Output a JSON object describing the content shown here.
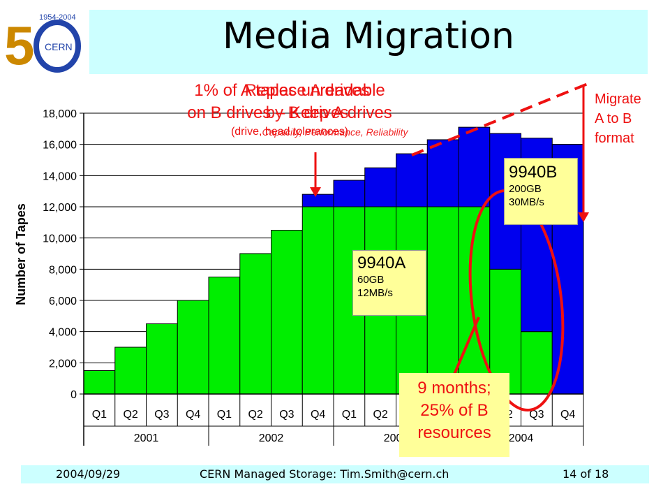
{
  "slide": {
    "title": "Media Migration",
    "logo_text": "CERN",
    "logo_years": "1954-2004"
  },
  "footer": {
    "date": "2004/09/29",
    "center": "CERN Managed Storage: Tim.Smith@cern.ch",
    "page": "14 of 18"
  },
  "annotations": {
    "replace_line1": "1% of A tapes unreadable",
    "replace_line2": "on B drives – Keep A drives",
    "replace_sub": "(drive, head tolerances)",
    "overlay_line1": "Replace A drives",
    "overlay_line2": "by B drives",
    "overlay_sub": "Capacity, Performance, Reliability",
    "migrate": "Migrate\nA to B\nformat",
    "callout": "9 months;\n25% of B\nresources"
  },
  "legend": {
    "a_name": "9940A",
    "a_cap": "60GB",
    "a_speed": "12MB/s",
    "b_name": "9940B",
    "b_cap": "200GB",
    "b_speed": "30MB/s"
  },
  "colors": {
    "series_a": "#00ee00",
    "series_b": "#0000ee",
    "title_bar": "#ccffff",
    "accent": "#ee1111",
    "legend_bg": "#ffff99"
  },
  "chart_data": {
    "type": "bar",
    "stacked": true,
    "ylabel": "Number of Tapes",
    "ylim": [
      0,
      18000
    ],
    "yticks": [
      "0",
      "2,000",
      "4,000",
      "6,000",
      "8,000",
      "10,000",
      "12,000",
      "14,000",
      "16,000",
      "18,000"
    ],
    "categories": [
      "Q1",
      "Q2",
      "Q3",
      "Q4",
      "Q1",
      "Q2",
      "Q3",
      "Q4",
      "Q1",
      "Q2",
      "Q3",
      "Q4",
      "Q1",
      "Q2",
      "Q3",
      "Q4"
    ],
    "years": [
      "2001",
      "2002",
      "2003",
      "2004"
    ],
    "series": [
      {
        "name": "9940A",
        "values": [
          1500,
          3000,
          4500,
          6000,
          7500,
          9000,
          10500,
          12000,
          12000,
          12000,
          12000,
          12000,
          12000,
          8000,
          4000,
          0
        ]
      },
      {
        "name": "9940B",
        "values": [
          0,
          0,
          0,
          0,
          0,
          0,
          0,
          800,
          1700,
          2500,
          3400,
          4300,
          5100,
          8700,
          12400,
          16000
        ]
      }
    ],
    "grid": true
  }
}
